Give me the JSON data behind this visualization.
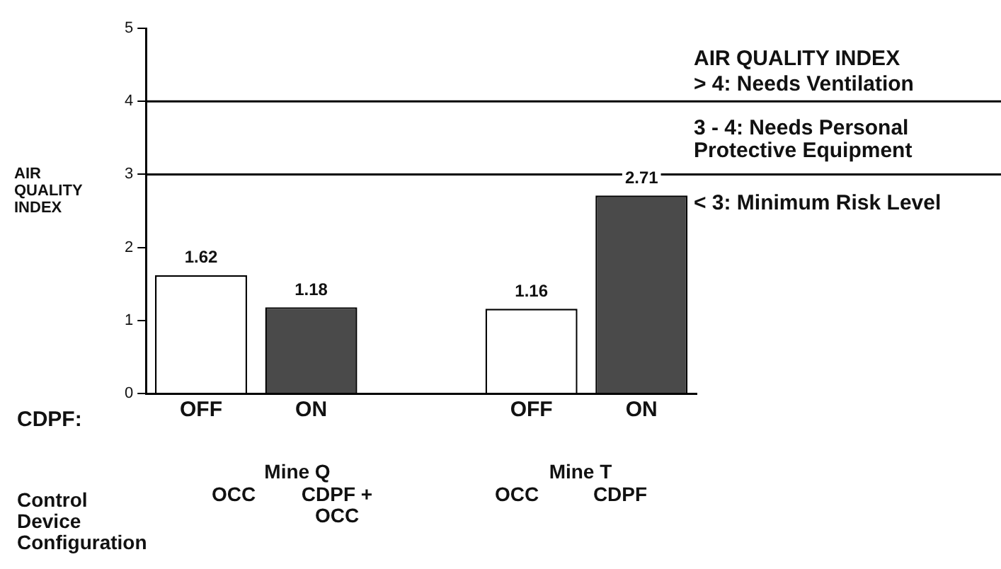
{
  "chart_data": {
    "type": "bar",
    "ylabel": "AIR QUALITY INDEX",
    "categories": [
      "OFF",
      "ON",
      null,
      "OFF",
      "ON"
    ],
    "values": [
      1.62,
      1.18,
      null,
      1.16,
      2.71
    ],
    "colors": [
      "#ffffff",
      "#4a4a4a",
      null,
      "#ffffff",
      "#4a4a4a"
    ],
    "data_labels": true,
    "ylim": [
      0,
      5
    ],
    "yticks": [
      0,
      1,
      2,
      3,
      4,
      5
    ],
    "grid": false,
    "legend": false,
    "ref_lines": [
      {
        "axis": "y",
        "value": 4,
        "color": "#000000"
      },
      {
        "axis": "y",
        "value": 3,
        "color": "#000000"
      }
    ],
    "annotations": [
      "AIR QUALITY INDEX",
      "> 4: Needs Ventilation",
      "3 - 4: Needs Personal Protective Equipment",
      "< 3: Minimum Risk Level",
      "CDPF:",
      "Mine Q",
      "Mine T",
      "Control Device Configuration",
      "OCC",
      "CDPF + OCC",
      "OCC",
      "CDPF"
    ]
  }
}
